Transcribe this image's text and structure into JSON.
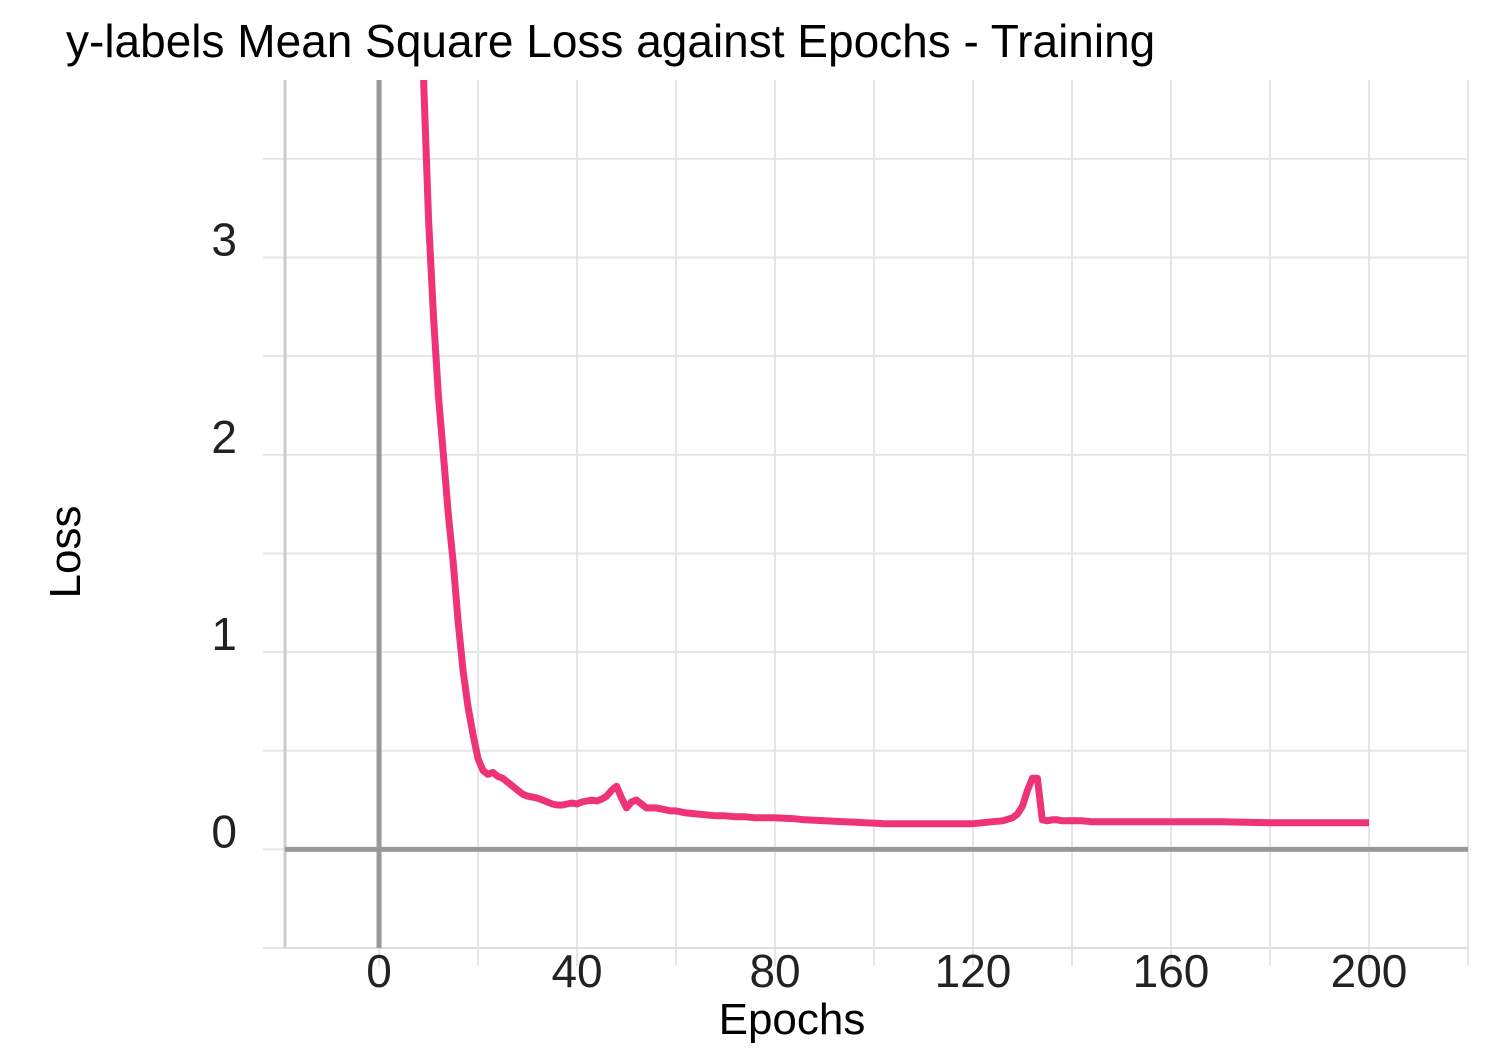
{
  "chart_data": {
    "type": "line",
    "title": "y-labels Mean Square Loss against Epochs - Training",
    "xlabel": "Epochs",
    "ylabel": "Loss",
    "xlim": [
      -19,
      220
    ],
    "ylim": [
      -0.5,
      3.9
    ],
    "x_ticks": [
      0,
      40,
      80,
      120,
      160,
      200
    ],
    "x_tick_labels": [
      "0",
      "40",
      "80",
      "120",
      "160",
      "200"
    ],
    "y_ticks": [
      0,
      1,
      2,
      3
    ],
    "y_tick_labels": [
      "0",
      "1",
      "2",
      "3"
    ],
    "grid": true,
    "series": [
      {
        "name": "",
        "color": "#ee3377",
        "x": [
          9,
          10,
          11,
          12,
          13,
          14,
          15,
          16,
          17,
          18,
          19,
          20,
          21,
          22,
          23,
          24,
          25,
          26,
          27,
          28,
          29,
          30,
          31,
          32,
          33,
          34,
          35,
          36,
          37,
          38,
          39,
          40,
          41,
          42,
          43,
          44,
          45,
          46,
          47,
          48,
          49,
          50,
          51,
          52,
          53,
          54,
          55,
          56,
          57,
          58,
          59,
          60,
          62,
          64,
          66,
          68,
          70,
          72,
          74,
          76,
          78,
          80,
          82,
          84,
          86,
          88,
          90,
          92,
          94,
          96,
          98,
          100,
          102,
          104,
          106,
          108,
          110,
          112,
          114,
          116,
          118,
          120,
          122,
          124,
          126,
          128,
          129,
          130,
          131,
          132,
          133,
          134,
          135,
          136,
          137,
          138,
          140,
          142,
          144,
          146,
          150,
          160,
          170,
          180,
          190,
          200
        ],
        "y": [
          3.9,
          3.2,
          2.7,
          2.3,
          2.0,
          1.7,
          1.45,
          1.15,
          0.9,
          0.72,
          0.58,
          0.46,
          0.4,
          0.38,
          0.39,
          0.37,
          0.36,
          0.34,
          0.32,
          0.3,
          0.28,
          0.27,
          0.265,
          0.26,
          0.25,
          0.24,
          0.23,
          0.225,
          0.225,
          0.23,
          0.235,
          0.23,
          0.24,
          0.245,
          0.25,
          0.245,
          0.255,
          0.27,
          0.3,
          0.32,
          0.26,
          0.21,
          0.24,
          0.25,
          0.23,
          0.21,
          0.21,
          0.21,
          0.205,
          0.2,
          0.195,
          0.195,
          0.185,
          0.18,
          0.175,
          0.17,
          0.17,
          0.165,
          0.165,
          0.16,
          0.16,
          0.16,
          0.158,
          0.155,
          0.15,
          0.148,
          0.145,
          0.143,
          0.14,
          0.138,
          0.135,
          0.133,
          0.13,
          0.13,
          0.13,
          0.13,
          0.13,
          0.13,
          0.13,
          0.13,
          0.13,
          0.13,
          0.135,
          0.14,
          0.145,
          0.16,
          0.18,
          0.22,
          0.3,
          0.36,
          0.36,
          0.15,
          0.145,
          0.15,
          0.15,
          0.145,
          0.145,
          0.145,
          0.14,
          0.14,
          0.14,
          0.14,
          0.14,
          0.135,
          0.135,
          0.135
        ]
      }
    ]
  }
}
